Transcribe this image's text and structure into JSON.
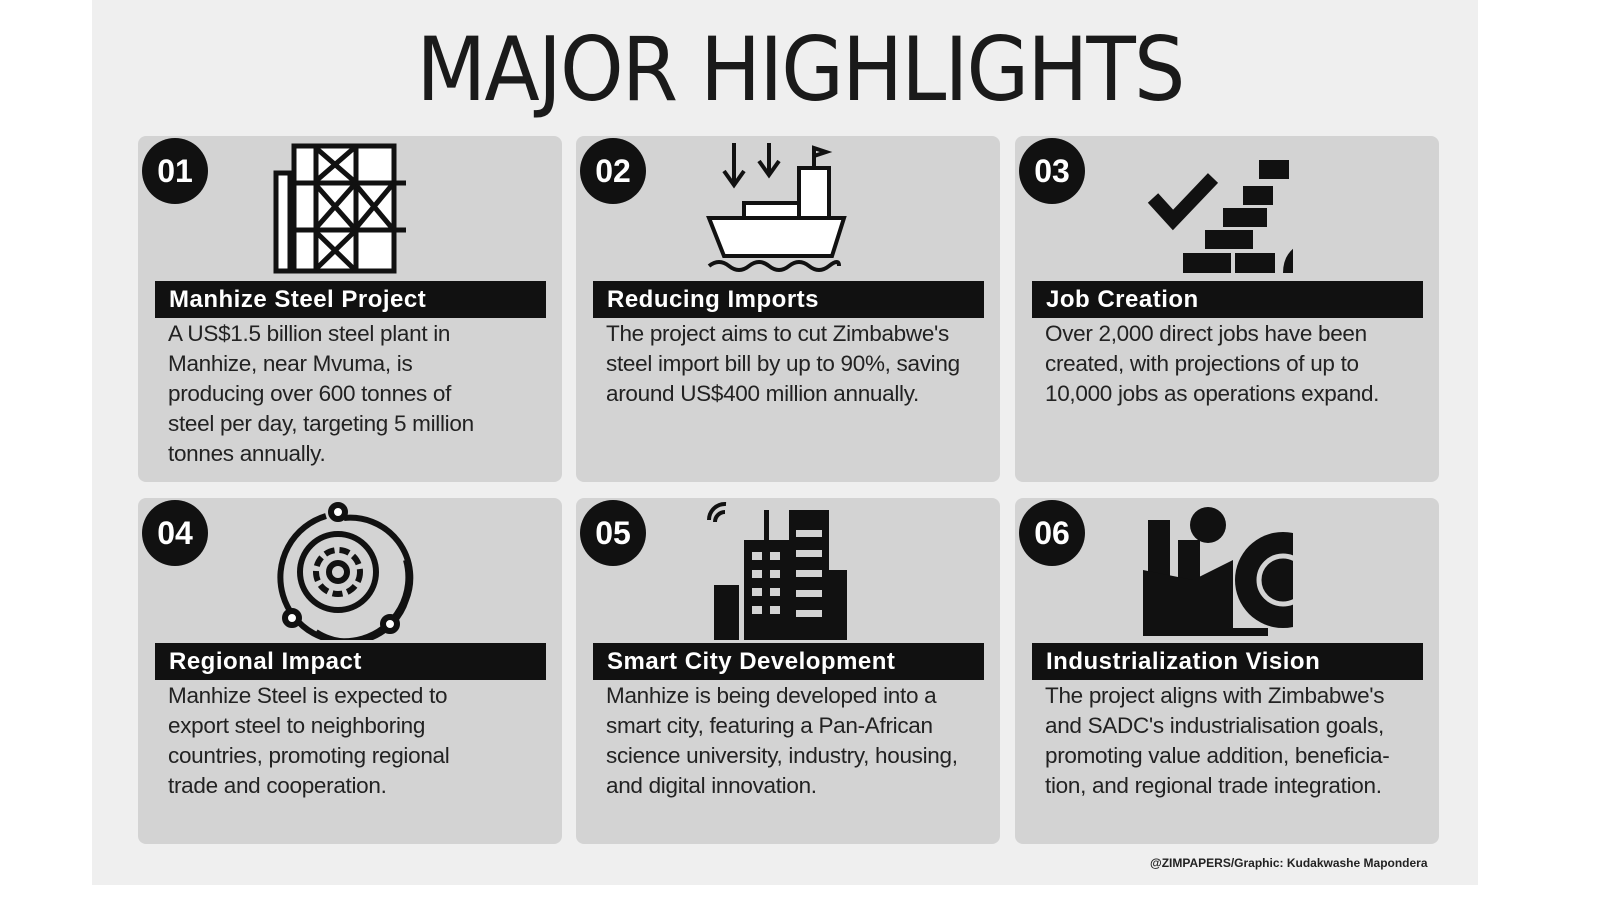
{
  "title": "MAJOR HIGHLIGHTS",
  "cards": [
    {
      "number": "01",
      "heading": "Manhize Steel Project",
      "body": [
        "A US$1.5 billion steel plant in",
        "Manhize, near Mvuma, is",
        "producing over 600 tonnes of",
        "steel per day, targeting 5 million",
        "tonnes annually."
      ]
    },
    {
      "number": "02",
      "heading": "Reducing Imports",
      "body": [
        "The project aims to cut Zimbabwe's",
        "steel import bill by up to 90%, saving",
        "around US$400 million annually."
      ]
    },
    {
      "number": "03",
      "heading": "Job Creation",
      "body": [
        "Over 2,000 direct jobs have been",
        "created, with projections of up to",
        "10,000 jobs as operations expand."
      ]
    },
    {
      "number": "04",
      "heading": "Regional Impact",
      "body": [
        "Manhize Steel is expected to",
        "export steel to neighboring",
        "countries, promoting regional",
        "trade and cooperation."
      ]
    },
    {
      "number": "05",
      "heading": "Smart City Development",
      "body": [
        "Manhize is being developed into a",
        "smart city, featuring a Pan-African",
        "science university, industry, housing,",
        "and digital innovation."
      ]
    },
    {
      "number": "06",
      "heading": "Industrialization Vision",
      "body": [
        "The project aligns with Zimbabwe's",
        "and SADC's industrialisation goals,",
        "promoting value addition, beneficia-",
        "tion, and regional trade integration."
      ]
    }
  ],
  "credit": "@ZIMPAPERS/Graphic: Kudakwashe Mapondera"
}
